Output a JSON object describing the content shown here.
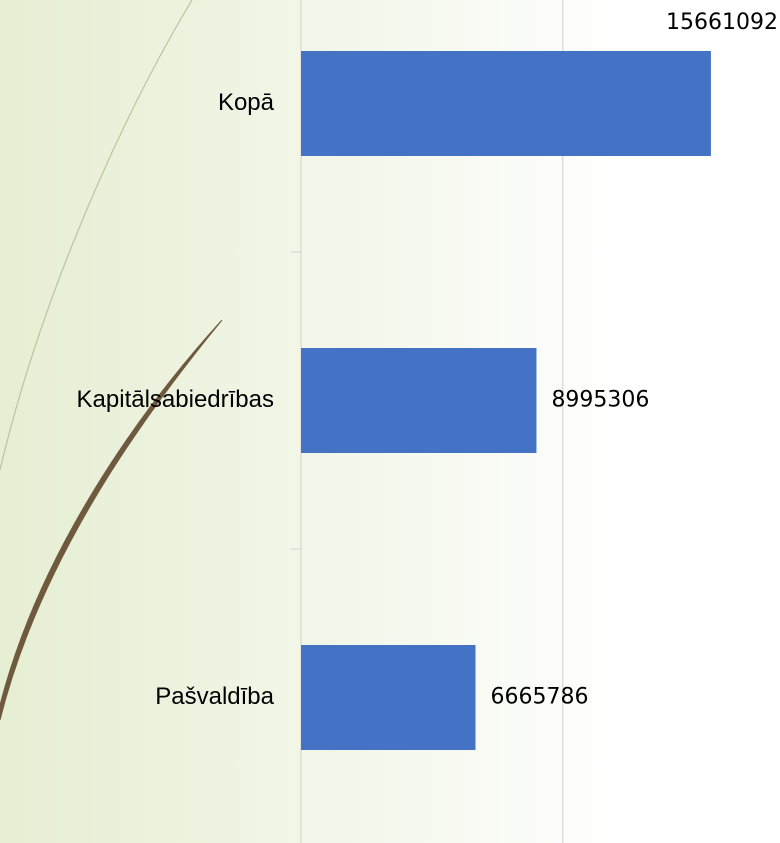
{
  "chart_data": {
    "type": "bar",
    "orientation": "horizontal",
    "categories": [
      "Kopā",
      "Kapitālsabiedrības",
      "Pašvaldība"
    ],
    "values": [
      15661092,
      8995306,
      6665786
    ],
    "color": "#4472c4",
    "xlim": [
      0,
      18300000
    ],
    "xticks": [
      0,
      10000000
    ],
    "grid": true
  }
}
